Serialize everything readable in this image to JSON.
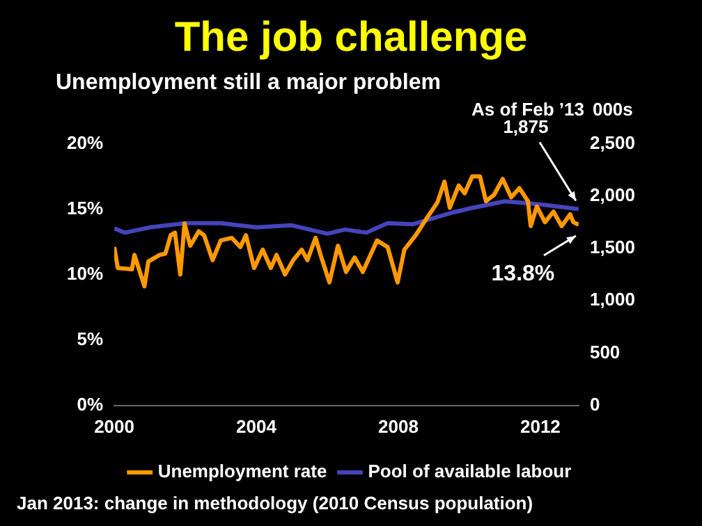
{
  "chart_data": {
    "type": "line",
    "title": "The job challenge",
    "subtitle": "Unemployment still a major problem",
    "y2label": "000s",
    "annotations": [
      "As of Feb ’13",
      "1,875",
      {
        "text": "13.8%",
        "x": 2013.08,
        "y": 13.8
      },
      "Jan 2013: change in methodology (2010 Census population)"
    ],
    "series": [
      {
        "name": "Unemployment rate",
        "color": "#ff9900",
        "x": [
          2000.0,
          2000.1,
          2000.5,
          2000.57,
          2000.85,
          2000.96,
          2001.28,
          2001.44,
          2001.59,
          2001.71,
          2001.86,
          2001.98,
          2002.14,
          2002.38,
          2002.53,
          2002.77,
          2003.0,
          2003.31,
          2003.55,
          2003.71,
          2003.94,
          2004.18,
          2004.41,
          2004.57,
          2004.81,
          2005.04,
          2005.28,
          2005.44,
          2005.67,
          2005.8,
          2006.06,
          2006.3,
          2006.53,
          2006.77,
          2007.0,
          2007.4,
          2007.7,
          2007.98,
          2008.17,
          2008.49,
          2008.8,
          2009.1,
          2009.3,
          2009.45,
          2009.7,
          2009.87,
          2010.08,
          2010.3,
          2010.47,
          2010.7,
          2010.94,
          2011.18,
          2011.41,
          2011.65,
          2011.73,
          2011.9,
          2012.13,
          2012.37,
          2012.6,
          2012.84,
          2012.93,
          2013.08
        ],
        "values": [
          12.1,
          10.5,
          10.4,
          11.5,
          9.1,
          11.0,
          11.5,
          11.6,
          13.0,
          13.2,
          10.0,
          13.9,
          12.2,
          13.3,
          13.0,
          11.1,
          12.6,
          12.8,
          12.1,
          13.0,
          10.5,
          11.9,
          10.5,
          11.5,
          10.0,
          11.1,
          11.9,
          11.1,
          12.8,
          11.6,
          9.4,
          12.2,
          10.2,
          11.3,
          10.2,
          12.6,
          12.1,
          9.4,
          11.9,
          13.0,
          14.3,
          15.5,
          17.1,
          15.1,
          16.8,
          16.2,
          17.5,
          17.5,
          15.6,
          16.1,
          17.3,
          15.9,
          16.6,
          15.6,
          13.7,
          15.2,
          14.0,
          14.8,
          13.7,
          14.6,
          14.0,
          13.8
        ]
      },
      {
        "name": "Pool of available labour",
        "color": "#4444bb",
        "axis": "y2",
        "x": [
          2000.0,
          2000.3,
          2001.0,
          2002.0,
          2003.0,
          2004.0,
          2005.0,
          2006.0,
          2006.5,
          2007.1,
          2007.7,
          2008.4,
          2009.0,
          2009.5,
          2010.0,
          2011.0,
          2012.0,
          2013.08
        ],
        "values": [
          1690,
          1650,
          1700,
          1740,
          1740,
          1700,
          1720,
          1640,
          1680,
          1650,
          1740,
          1730,
          1790,
          1840,
          1880,
          1950,
          1920,
          1875
        ]
      }
    ],
    "xlim": [
      2000,
      2013.08
    ],
    "xticks": [
      2000,
      2004,
      2008,
      2012
    ],
    "ylim": [
      0,
      20
    ],
    "yticks": [
      {
        "value": 0,
        "label": "0%"
      },
      {
        "value": 5,
        "label": "5%"
      },
      {
        "value": 10,
        "label": "10%"
      },
      {
        "value": 15,
        "label": "15%"
      },
      {
        "value": 20,
        "label": "20%"
      }
    ],
    "y2lim": [
      0,
      2500
    ],
    "y2ticks": [
      0,
      500,
      {
        "value": 1000,
        "label": "1,000"
      },
      {
        "value": 1500,
        "label": "1,500"
      },
      {
        "value": 2000,
        "label": "2,000"
      },
      {
        "value": 2500,
        "label": "2,500"
      }
    ],
    "grid": false,
    "legend": "bottom",
    "marker": "none",
    "line_style": "solid"
  }
}
